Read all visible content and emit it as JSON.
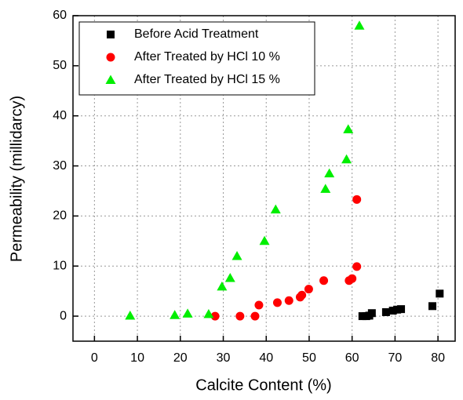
{
  "chart_data": {
    "type": "scatter",
    "x_label": "Calcite Content (%)",
    "y_label": "Permeability (millidarcy)",
    "xlim": [
      -5,
      84
    ],
    "ylim": [
      -5,
      60
    ],
    "xticks": [
      0,
      10,
      20,
      30,
      40,
      50,
      60,
      70,
      80
    ],
    "yticks": [
      0,
      10,
      20,
      30,
      40,
      50,
      60
    ],
    "grid": true,
    "legend": "upper left",
    "series": [
      {
        "name": "Before Acid Treatment",
        "color": "#000000",
        "marker": "square",
        "x": [
          62.4,
          63.3,
          64,
          64.6,
          67.9,
          69.5,
          70.5,
          71.4,
          78.7,
          80.4
        ],
        "values": [
          0,
          0,
          0.1,
          0.6,
          0.8,
          1.1,
          1.3,
          1.4,
          2,
          4.5
        ]
      },
      {
        "name": "After Treated by HCl 10 %",
        "color": "#ff0000",
        "marker": "circle",
        "x": [
          28.1,
          33.9,
          37.4,
          38.3,
          42.6,
          45.3,
          47.9,
          48.3,
          49.9,
          53.4,
          59.3,
          60,
          61.1,
          61.1
        ],
        "values": [
          0,
          0,
          0,
          2.2,
          2.7,
          3.1,
          3.8,
          4.2,
          5.4,
          7.1,
          7.1,
          7.5,
          9.9,
          23.3
        ]
      },
      {
        "name": "After Treated by HCl 15 %",
        "color": "#00ee00",
        "marker": "triangle",
        "x": [
          8.3,
          18.7,
          21.7,
          26.6,
          29.7,
          31.6,
          33.2,
          39.6,
          42.2,
          53.8,
          54.7,
          58.7,
          59.1,
          61.7
        ],
        "values": [
          0.1,
          0.2,
          0.5,
          0.4,
          5.9,
          7.6,
          12,
          15,
          21.3,
          25.4,
          28.5,
          31.3,
          37.3,
          58
        ]
      }
    ]
  }
}
